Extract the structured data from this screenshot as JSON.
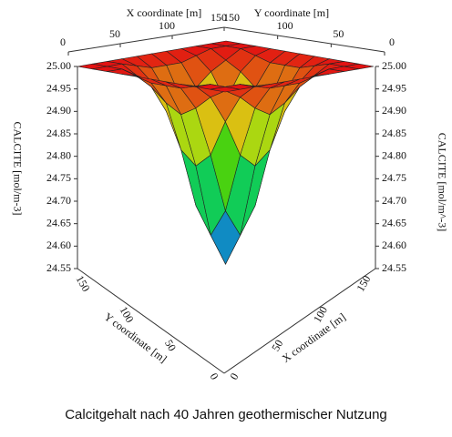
{
  "chart_data": {
    "type": "surface",
    "title": "Calcitgehalt nach 40 Jahren geothermischer Nutzung",
    "xlabel": "X coordinate [m]",
    "ylabel": "Y coordinate [m]",
    "zlabel": "CALCITE [mol/m-3]",
    "zlabel_right": "CALCITE [mol/m^-3]",
    "xlim": [
      0,
      150
    ],
    "ylim": [
      0,
      150
    ],
    "zlim": [
      24.55,
      25.0
    ],
    "xticks": [
      0,
      50,
      100,
      150
    ],
    "yticks": [
      0,
      50,
      100,
      150
    ],
    "zticks": [
      {
        "value": 25,
        "label": "25.00"
      },
      24.95,
      {
        "value": 24.9,
        "label": "24.90"
      },
      24.85,
      {
        "value": 24.8,
        "label": "24.80"
      },
      24.75,
      {
        "value": 24.7,
        "label": "24.70"
      },
      24.65,
      {
        "value": 24.6,
        "label": "24.60"
      },
      24.55
    ],
    "x": [
      0,
      15,
      30,
      45,
      60,
      75,
      90,
      105,
      120,
      135,
      150
    ],
    "y": [
      0,
      15,
      30,
      45,
      60,
      75,
      90,
      105,
      120,
      135,
      150
    ],
    "z": [
      [
        25,
        25,
        25,
        25,
        25,
        25,
        25,
        25,
        25,
        25,
        25
      ],
      [
        25,
        25,
        25,
        24.99,
        24.98,
        24.98,
        24.98,
        24.99,
        25,
        25,
        25
      ],
      [
        25,
        25,
        24.98,
        24.96,
        24.93,
        24.91,
        24.93,
        24.96,
        24.98,
        25,
        25
      ],
      [
        25,
        24.99,
        24.96,
        24.9,
        24.82,
        24.79,
        24.82,
        24.9,
        24.96,
        24.99,
        25
      ],
      [
        25,
        24.98,
        24.93,
        24.82,
        24.69,
        24.63,
        24.69,
        24.82,
        24.93,
        24.98,
        25
      ],
      [
        25,
        24.98,
        24.91,
        24.79,
        24.63,
        24.56,
        24.63,
        24.79,
        24.91,
        24.98,
        25
      ],
      [
        25,
        24.98,
        24.93,
        24.82,
        24.69,
        24.63,
        24.69,
        24.82,
        24.93,
        24.98,
        25
      ],
      [
        25,
        24.99,
        24.96,
        24.9,
        24.82,
        24.79,
        24.82,
        24.9,
        24.96,
        24.99,
        25
      ],
      [
        25,
        25,
        24.98,
        24.96,
        24.93,
        24.91,
        24.93,
        24.96,
        24.98,
        25,
        25
      ],
      [
        25,
        25,
        25,
        24.99,
        24.98,
        24.98,
        24.98,
        24.99,
        25,
        25,
        25
      ],
      [
        25,
        25,
        25,
        25,
        25,
        25,
        25,
        25,
        25,
        25,
        25
      ]
    ]
  }
}
